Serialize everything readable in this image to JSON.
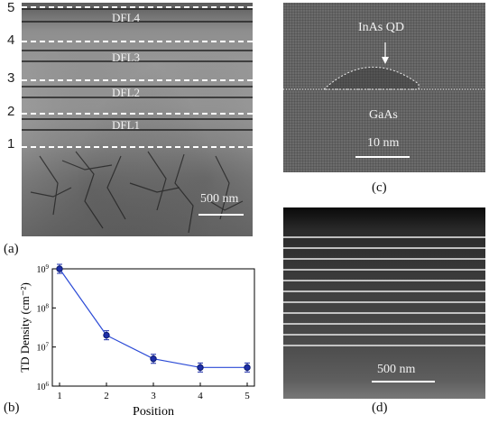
{
  "panel_labels": {
    "a": "(a)",
    "b": "(b)",
    "c": "(c)",
    "d": "(d)"
  },
  "panel_a": {
    "position_numbers": [
      "5",
      "4",
      "3",
      "2",
      "1"
    ],
    "layer_labels": [
      "DFL4",
      "DFL3",
      "DFL2",
      "DFL1"
    ],
    "scale_bar": "500 nm"
  },
  "panel_c": {
    "qd_label": "InAs QD",
    "substrate_label": "GaAs",
    "scale_bar": "10 nm"
  },
  "panel_d": {
    "scale_bar": "500 nm"
  },
  "chart_data": {
    "type": "line",
    "xlabel": "Position",
    "ylabel": "TD Density (cm⁻²)",
    "x": [
      1,
      2,
      3,
      4,
      5
    ],
    "y": [
      1000000000.0,
      20000000.0,
      5000000.0,
      3000000.0,
      3000000.0
    ],
    "y_scale": "log",
    "ylim": [
      1000000.0,
      1000000000.0
    ],
    "xlim": [
      1,
      5
    ],
    "x_ticks": [
      "1",
      "2",
      "3",
      "4",
      "5"
    ],
    "y_tick_exponents": [
      "6",
      "7",
      "8",
      "9"
    ],
    "y_tick_base": "10",
    "error_bars": true,
    "line_color": "#2c4bd6",
    "marker_color": "#1e2fa8"
  }
}
